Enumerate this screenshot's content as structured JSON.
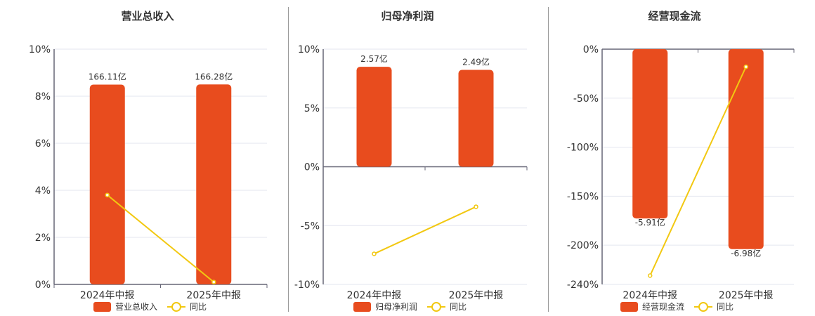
{
  "chart_data": [
    {
      "type": "bar+line",
      "title": "营业总收入",
      "categories": [
        "2024年中报",
        "2025年中报"
      ],
      "bar_series": "营业总收入",
      "bar_values": [
        166.11,
        166.28
      ],
      "bar_labels": [
        "166.11亿",
        "166.28亿"
      ],
      "line_series": "同比",
      "line_values": [
        3.8,
        0.1
      ],
      "ylim": [
        0,
        10
      ],
      "ytick_values": [
        0,
        2,
        4,
        6,
        8,
        10
      ],
      "ytick_labels": [
        "0%",
        "2%",
        "4%",
        "6%",
        "8%",
        "10%"
      ],
      "grid": true,
      "legend": "bottom"
    },
    {
      "type": "bar+line",
      "title": "归母净利润",
      "categories": [
        "2024年中报",
        "2025年中报"
      ],
      "bar_series": "归母净利润",
      "bar_values": [
        2.57,
        2.49
      ],
      "bar_labels": [
        "2.57亿",
        "2.49亿"
      ],
      "line_series": "同比",
      "line_values": [
        -7.4,
        -3.4
      ],
      "ylim": [
        -10,
        10
      ],
      "ytick_values": [
        -10,
        -5,
        0,
        5,
        10
      ],
      "ytick_labels": [
        "-10%",
        "-5%",
        "0%",
        "5%",
        "10%"
      ],
      "grid": true,
      "legend": "bottom"
    },
    {
      "type": "bar+line",
      "title": "经营现金流",
      "categories": [
        "2024年中报",
        "2025年中报"
      ],
      "bar_series": "经营现金流",
      "bar_values": [
        -5.91,
        -6.98
      ],
      "bar_labels": [
        "-5.91亿",
        "-6.98亿"
      ],
      "line_series": "同比",
      "line_values": [
        -231,
        -18
      ],
      "ylim": [
        -240,
        0
      ],
      "ytick_values": [
        -240,
        -200,
        -150,
        -100,
        -50,
        0
      ],
      "ytick_labels": [
        "-240%",
        "-200%",
        "-150%",
        "-100%",
        "-50%",
        "0%"
      ],
      "grid": true,
      "legend": "bottom"
    }
  ],
  "colors": {
    "bar": "#E84C1E",
    "line": "#F2C811",
    "grid": "#E3E6EF",
    "axis": "#666677"
  }
}
